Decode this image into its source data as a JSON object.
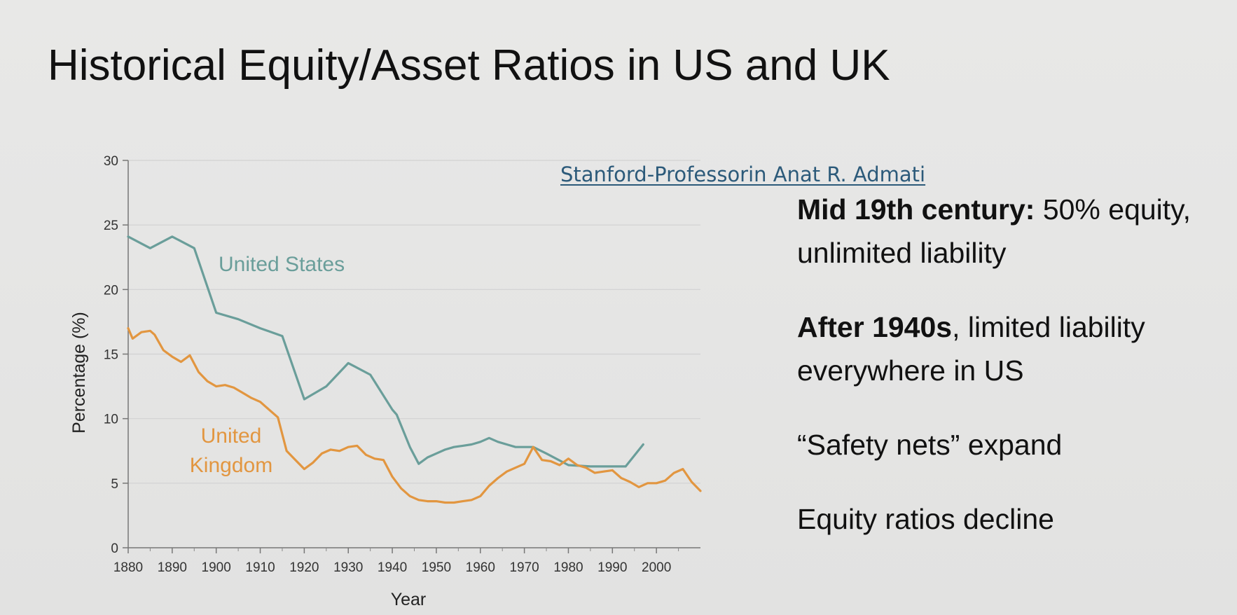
{
  "slide": {
    "title": "Historical Equity/Asset Ratios in US and UK",
    "credit": "Stanford-Professorin Anat R. Admati",
    "bullets": [
      {
        "bold": "Mid 19th century:",
        "rest": " 50% equity, unlimited liability"
      },
      {
        "bold": "After 1940s",
        "rest": ", limited liability everywhere in US"
      },
      {
        "bold": "",
        "rest": "“Safety nets” expand"
      },
      {
        "bold": "",
        "rest": "Equity ratios decline"
      }
    ]
  },
  "chart_data": {
    "type": "line",
    "title": "",
    "xlabel": "Year",
    "ylabel": "Percentage (%)",
    "xlim": [
      1880,
      2010
    ],
    "ylim": [
      0,
      30
    ],
    "xticks": [
      1880,
      1890,
      1900,
      1910,
      1920,
      1930,
      1940,
      1950,
      1960,
      1970,
      1980,
      1990,
      2000
    ],
    "yticks": [
      0,
      5,
      10,
      15,
      20,
      25,
      30
    ],
    "grid": "horizontal",
    "legend": "inline labels",
    "series": [
      {
        "name": "United States",
        "label_lines": [
          "United States"
        ],
        "color": "#6a9e9a",
        "x": [
          1880,
          1885,
          1890,
          1895,
          1900,
          1905,
          1910,
          1915,
          1920,
          1925,
          1930,
          1935,
          1940,
          1941,
          1944,
          1946,
          1948,
          1950,
          1952,
          1954,
          1956,
          1958,
          1960,
          1962,
          1964,
          1966,
          1968,
          1972,
          1975,
          1980,
          1985,
          1990,
          1993,
          1997
        ],
        "y": [
          24.1,
          23.2,
          24.1,
          23.2,
          18.2,
          17.7,
          17.0,
          16.4,
          11.5,
          12.5,
          14.3,
          13.4,
          10.7,
          10.3,
          7.8,
          6.5,
          7.0,
          7.3,
          7.6,
          7.8,
          7.9,
          8.0,
          8.2,
          8.5,
          8.2,
          8.0,
          7.8,
          7.8,
          7.3,
          6.4,
          6.3,
          6.3,
          6.3,
          8.0
        ]
      },
      {
        "name": "United Kingdom",
        "label_lines": [
          "United",
          "Kingdom"
        ],
        "color": "#e29640",
        "x": [
          1880,
          1881,
          1883,
          1885,
          1886,
          1888,
          1890,
          1892,
          1894,
          1896,
          1898,
          1900,
          1902,
          1904,
          1906,
          1908,
          1910,
          1912,
          1914,
          1916,
          1918,
          1920,
          1922,
          1924,
          1926,
          1928,
          1930,
          1932,
          1934,
          1936,
          1938,
          1940,
          1942,
          1944,
          1946,
          1948,
          1950,
          1952,
          1954,
          1956,
          1958,
          1960,
          1962,
          1964,
          1966,
          1968,
          1970,
          1972,
          1974,
          1976,
          1978,
          1980,
          1982,
          1984,
          1986,
          1988,
          1990,
          1992,
          1994,
          1996,
          1998,
          2000,
          2002,
          2004,
          2006,
          2008,
          2010
        ],
        "y": [
          17.0,
          16.2,
          16.7,
          16.8,
          16.5,
          15.3,
          14.8,
          14.4,
          14.9,
          13.6,
          12.9,
          12.5,
          12.6,
          12.4,
          12.0,
          11.6,
          11.3,
          10.7,
          10.1,
          7.5,
          6.8,
          6.1,
          6.6,
          7.3,
          7.6,
          7.5,
          7.8,
          7.9,
          7.2,
          6.9,
          6.8,
          5.5,
          4.6,
          4.0,
          3.7,
          3.6,
          3.6,
          3.5,
          3.5,
          3.6,
          3.7,
          4.0,
          4.8,
          5.4,
          5.9,
          6.2,
          6.5,
          7.8,
          6.8,
          6.7,
          6.4,
          6.9,
          6.4,
          6.2,
          5.8,
          5.9,
          6.0,
          5.4,
          5.1,
          4.7,
          5.0,
          5.0,
          5.2,
          5.8,
          6.1,
          5.1,
          4.4
        ]
      }
    ]
  }
}
